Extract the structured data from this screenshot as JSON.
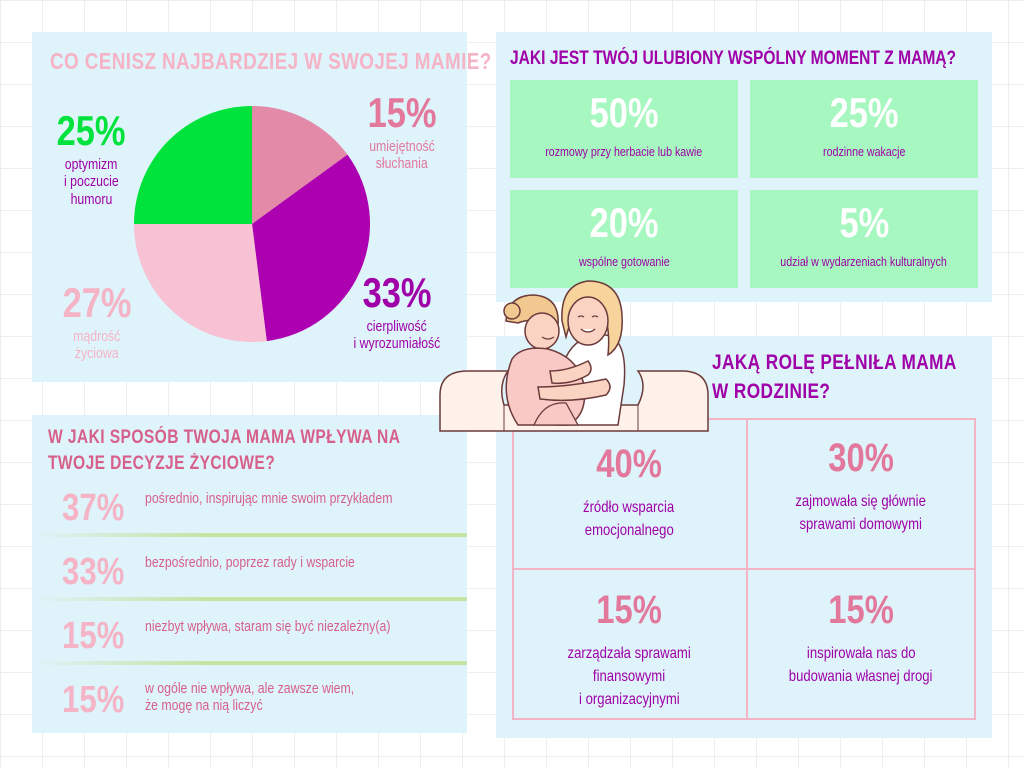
{
  "colors": {
    "panel_bg": "#dff3fb",
    "green": "#00e33c",
    "pink": "#e2789c",
    "light_pink": "#f4b4c6",
    "purple": "#9f00a7",
    "mint": "#a6f7c0"
  },
  "chart_data": {
    "type": "pie",
    "title": "CO CENISZ NAJBARDZIEJ W SWOJEJ MAMIE?",
    "slices": [
      {
        "label": "umiejętność słuchania",
        "value": 15,
        "percent_label": "15%",
        "color": "#e48aa9"
      },
      {
        "label": "cierpliwość i wyrozumiałość",
        "value": 33,
        "percent_label": "33%",
        "color": "#ad00b0"
      },
      {
        "label": "mądrość życiowa",
        "value": 27,
        "percent_label": "27%",
        "color": "#f7c2d3"
      },
      {
        "label": "optymizm i poczucie humoru",
        "value": 25,
        "percent_label": "25%",
        "color": "#00e33c"
      }
    ]
  },
  "pie_labels": {
    "humor": {
      "pct": "25%",
      "line1": "optymizm",
      "line2": "i poczucie",
      "line3": "humoru"
    },
    "listen": {
      "pct": "15%",
      "line1": "umiejętność",
      "line2": "słuchania"
    },
    "patience": {
      "pct": "33%",
      "line1": "cierpliwość",
      "line2": "i wyrozumiałość"
    },
    "wisdom": {
      "pct": "27%",
      "line1": "mądrość",
      "line2": "życiowa"
    }
  },
  "moments": {
    "title": "JAKI JEST TWÓJ ULUBIONY WSPÓLNY MOMENT Z MAMĄ?",
    "cards": [
      {
        "pct": "50%",
        "label": "rozmowy przy herbacie lub kawie"
      },
      {
        "pct": "25%",
        "label": "rodzinne wakacje"
      },
      {
        "pct": "20%",
        "label": "wspólne gotowanie"
      },
      {
        "pct": "5%",
        "label": "udział w wydarzeniach kulturalnych"
      }
    ]
  },
  "influence": {
    "title_line1": "W JAKI SPOSÓB TWOJA MAMA WPŁYWA NA",
    "title_line2": "TWOJE DECYZJE ŻYCIOWE?",
    "rows": [
      {
        "pct": "37%",
        "line1": "pośrednio, inspirując mnie swoim przykładem",
        "line2": ""
      },
      {
        "pct": "33%",
        "line1": "bezpośrednio, poprzez rady i wsparcie",
        "line2": ""
      },
      {
        "pct": "15%",
        "line1": "niezbyt wpływa, staram się być niezależny(a)",
        "line2": ""
      },
      {
        "pct": "15%",
        "line1": "w ogóle nie wpływa, ale zawsze wiem,",
        "line2": "że mogę na nią liczyć"
      }
    ]
  },
  "role": {
    "title_line1": "JAKĄ ROLĘ PEŁNIŁA MAMA",
    "title_line2": "W RODZINIE?",
    "cells": [
      {
        "pct": "40%",
        "line1": "źródło wsparcia",
        "line2": "emocjonalnego",
        "line3": ""
      },
      {
        "pct": "30%",
        "line1": "zajmowała się głównie",
        "line2": "sprawami domowymi",
        "line3": ""
      },
      {
        "pct": "15%",
        "line1": "zarządzała sprawami",
        "line2": "finansowymi",
        "line3": "i organizacyjnymi"
      },
      {
        "pct": "15%",
        "line1": "inspirowała nas do",
        "line2": "budowania własnej drogi",
        "line3": ""
      }
    ]
  }
}
